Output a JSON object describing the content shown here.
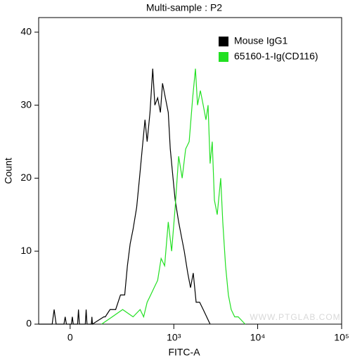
{
  "chart_data": {
    "type": "line",
    "title": "Multi-sample : P2",
    "x_label": "FITC-A",
    "y_label": "Count",
    "xscale": "asinh",
    "linear_width": 117,
    "xlim": [
      -114,
      100000
    ],
    "xticks": [
      0,
      {
        "value": 1000,
        "label": "10³"
      },
      {
        "value": 10000,
        "label": "10⁴"
      },
      {
        "value": 100000,
        "label": "10⁵"
      }
    ],
    "ylim": [
      0,
      42
    ],
    "yticks": [
      0,
      10,
      20,
      30,
      40
    ],
    "legend": "upper right",
    "annotation": "WWW.PTGLAB.COM",
    "series": [
      {
        "name": "Mouse IgG1",
        "color": "#000000",
        "x": [
          -114,
          -60,
          -53,
          -46,
          -20,
          -16,
          -12,
          4,
          7,
          10,
          24,
          27,
          30,
          50,
          53,
          56,
          72,
          74,
          76,
          124,
          131,
          155,
          187,
          218,
          248,
          269,
          292,
          318,
          353,
          383,
          414,
          448,
          476,
          516,
          557,
          591,
          639,
          690,
          732,
          792,
          858,
          907,
          979,
          1038,
          1143,
          1234,
          1334,
          1468,
          1585,
          1708,
          1849,
          2036,
          2246,
          2469,
          2714
        ],
        "values": [
          0,
          0,
          2,
          0,
          0,
          1,
          0,
          0,
          1,
          0,
          0,
          2,
          0,
          0,
          2,
          0,
          0,
          1,
          0,
          1,
          1,
          2,
          2,
          4,
          4,
          8,
          11,
          13,
          16,
          20,
          24,
          28,
          25,
          29,
          35,
          30,
          31,
          29,
          33,
          31,
          29,
          24,
          20,
          17,
          14,
          12,
          10,
          7,
          5,
          7,
          3,
          3,
          2,
          1,
          0
        ]
      },
      {
        "name": "65160-1-Ig(CD116)",
        "color": "#22e022",
        "x": [
          114,
          167,
          233,
          318,
          390,
          431,
          476,
          526,
          579,
          639,
          704,
          776,
          858,
          942,
          1038,
          1143,
          1259,
          1386,
          1527,
          1681,
          1814,
          1922,
          2077,
          2246,
          2422,
          2566,
          2714,
          2878,
          3053,
          3298,
          3629,
          3842,
          4146,
          4479,
          4838,
          5326,
          5865,
          7094
        ],
        "values": [
          0,
          1,
          2,
          1,
          2,
          1,
          3,
          4,
          5,
          6,
          9,
          8,
          14,
          10,
          16,
          23,
          20,
          24,
          25,
          31,
          35,
          30,
          32,
          30,
          28,
          30,
          22,
          25,
          17,
          15,
          20,
          14,
          8,
          4,
          2,
          1,
          1,
          0
        ]
      }
    ]
  }
}
